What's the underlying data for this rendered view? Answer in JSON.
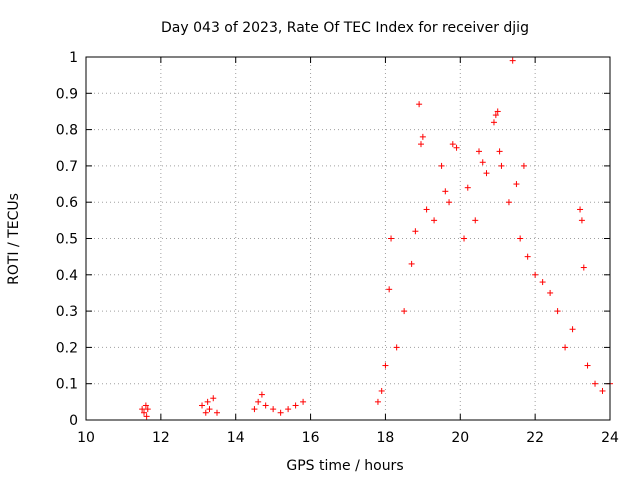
{
  "chart_data": {
    "type": "scatter",
    "title": "Day 043 of 2023, Rate Of TEC Index for receiver djig",
    "xlabel": "GPS time / hours",
    "ylabel": "ROTI / TECUs",
    "xlim": [
      10,
      24
    ],
    "ylim": [
      0,
      1
    ],
    "xticks": [
      "10",
      "12",
      "14",
      "16",
      "18",
      "20",
      "22",
      "24"
    ],
    "yticks": [
      "0",
      "0.1",
      "0.2",
      "0.3",
      "0.4",
      "0.5",
      "0.6",
      "0.7",
      "0.8",
      "0.9",
      "1"
    ],
    "grid": true,
    "marker": "plus",
    "color": "#ff0000",
    "series": [
      {
        "points": [
          [
            11.5,
            0.03
          ],
          [
            11.55,
            0.02
          ],
          [
            11.6,
            0.04
          ],
          [
            11.62,
            0.01
          ],
          [
            11.65,
            0.03
          ],
          [
            13.1,
            0.04
          ],
          [
            13.2,
            0.02
          ],
          [
            13.25,
            0.05
          ],
          [
            13.3,
            0.03
          ],
          [
            13.4,
            0.06
          ],
          [
            13.5,
            0.02
          ],
          [
            14.5,
            0.03
          ],
          [
            14.6,
            0.05
          ],
          [
            14.7,
            0.07
          ],
          [
            14.8,
            0.04
          ],
          [
            15.0,
            0.03
          ],
          [
            15.2,
            0.02
          ],
          [
            15.4,
            0.03
          ],
          [
            15.6,
            0.04
          ],
          [
            15.8,
            0.05
          ],
          [
            17.8,
            0.05
          ],
          [
            17.9,
            0.08
          ],
          [
            18.0,
            0.15
          ],
          [
            18.1,
            0.36
          ],
          [
            18.15,
            0.5
          ],
          [
            18.3,
            0.2
          ],
          [
            18.5,
            0.3
          ],
          [
            18.7,
            0.43
          ],
          [
            18.8,
            0.52
          ],
          [
            18.9,
            0.87
          ],
          [
            18.95,
            0.76
          ],
          [
            19.0,
            0.78
          ],
          [
            19.1,
            0.58
          ],
          [
            19.3,
            0.55
          ],
          [
            19.5,
            0.7
          ],
          [
            19.6,
            0.63
          ],
          [
            19.7,
            0.6
          ],
          [
            19.8,
            0.76
          ],
          [
            19.9,
            0.75
          ],
          [
            20.1,
            0.5
          ],
          [
            20.2,
            0.64
          ],
          [
            20.4,
            0.55
          ],
          [
            20.5,
            0.74
          ],
          [
            20.6,
            0.71
          ],
          [
            20.7,
            0.68
          ],
          [
            20.9,
            0.82
          ],
          [
            20.95,
            0.84
          ],
          [
            21.0,
            0.85
          ],
          [
            21.05,
            0.74
          ],
          [
            21.1,
            0.7
          ],
          [
            21.3,
            0.6
          ],
          [
            21.4,
            0.99
          ],
          [
            21.5,
            0.65
          ],
          [
            21.6,
            0.5
          ],
          [
            21.7,
            0.7
          ],
          [
            21.8,
            0.45
          ],
          [
            22.0,
            0.4
          ],
          [
            22.2,
            0.38
          ],
          [
            22.4,
            0.35
          ],
          [
            22.6,
            0.3
          ],
          [
            22.8,
            0.2
          ],
          [
            23.0,
            0.25
          ],
          [
            23.2,
            0.58
          ],
          [
            23.25,
            0.55
          ],
          [
            23.3,
            0.42
          ],
          [
            23.4,
            0.15
          ],
          [
            23.6,
            0.1
          ],
          [
            23.8,
            0.08
          ],
          [
            24.0,
            0.1
          ]
        ]
      }
    ]
  }
}
